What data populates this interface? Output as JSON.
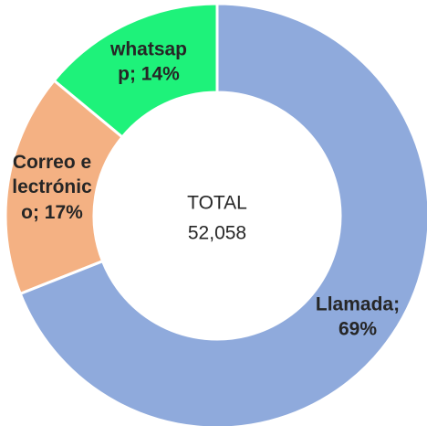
{
  "chart_data": {
    "type": "donut",
    "categories": [
      "Llamada",
      "Correo electrónico",
      "whatsapp"
    ],
    "values": [
      69,
      17,
      14
    ],
    "value_labels": [
      "Llamada; 69%",
      "Correo electrónico; 17%",
      "whatsapp; 14%"
    ],
    "colors": [
      "#8faadc",
      "#f4b183",
      "#1ef27a"
    ],
    "center_text": [
      "TOTAL",
      "52,058"
    ]
  }
}
